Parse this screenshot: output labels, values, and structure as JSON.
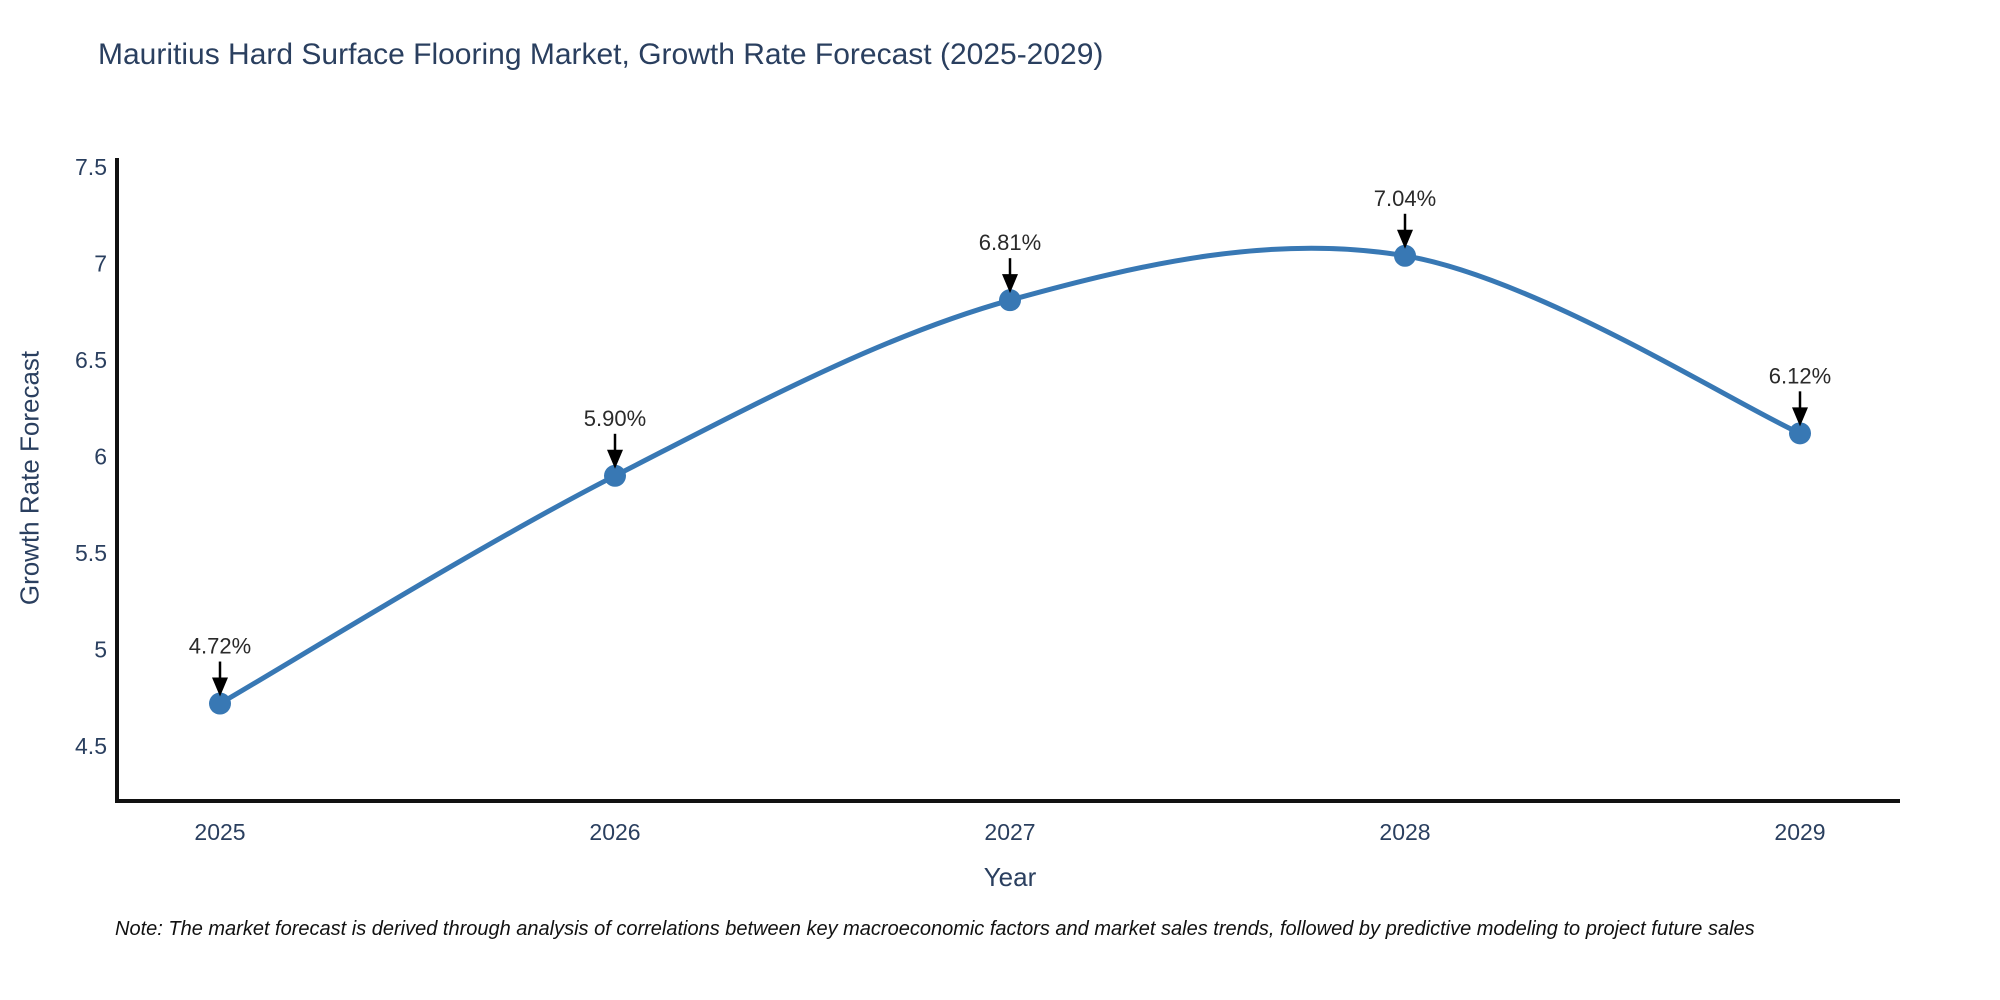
{
  "title": "Mauritius Hard Surface Flooring Market, Growth Rate Forecast (2025-2029)",
  "note": "Note: The market forecast is derived through analysis of correlations between key macroeconomic factors and market sales trends, followed by predictive modeling to project future sales",
  "chart_data": {
    "type": "line",
    "line_shape": "spline",
    "title": "Mauritius Hard Surface Flooring Market, Growth Rate Forecast (2025-2029)",
    "xlabel": "Year",
    "ylabel": "Growth Rate Forecast",
    "categories": [
      2025,
      2026,
      2027,
      2028,
      2029
    ],
    "values": [
      4.72,
      5.9,
      6.81,
      7.04,
      6.12
    ],
    "point_labels": [
      "4.72%",
      "5.90%",
      "6.81%",
      "7.04%",
      "6.12%"
    ],
    "yticks": [
      4.5,
      5,
      5.5,
      6,
      6.5,
      7,
      7.5
    ],
    "ylim": [
      4.21,
      7.55
    ],
    "grid": false,
    "legend_position": "none",
    "annotations_style": "black-arrow-above-point",
    "colors": {
      "line": "#3878b4",
      "marker": "#3878b4",
      "axis_line": "#111111",
      "axis_text": "#2a3f5f",
      "annotation_text": "#2a2a2a",
      "arrow": "#000000",
      "background": "#ffffff"
    }
  }
}
